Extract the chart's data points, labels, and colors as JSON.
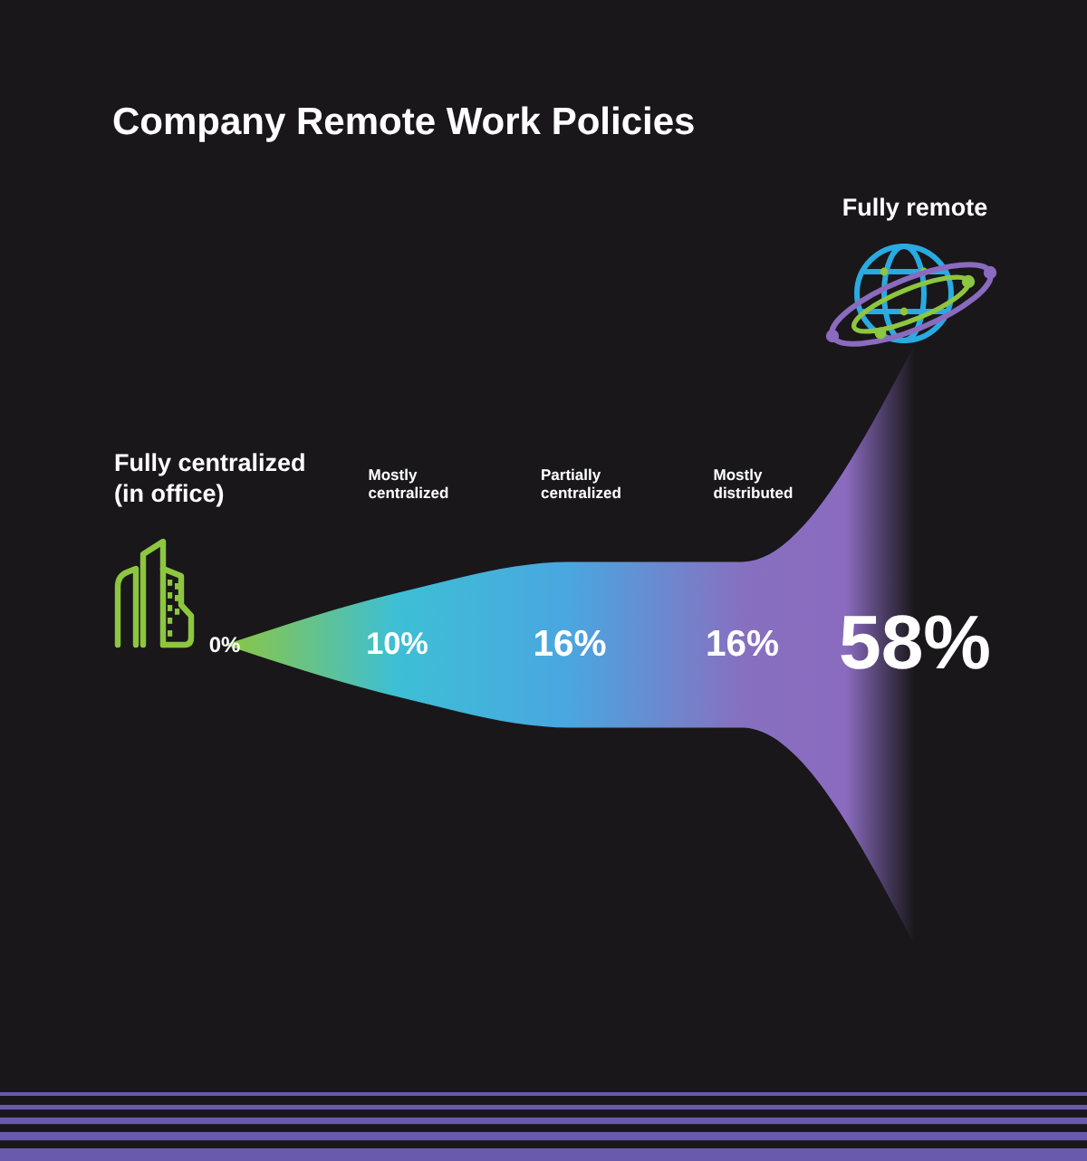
{
  "chart_data": {
    "type": "other",
    "title": "Company Remote Work Policies",
    "categories": [
      "Fully centralized\n(in office)",
      "Mostly\ncentralized",
      "Partially\ncentralized",
      "Mostly\ndistributed",
      "Fully remote"
    ],
    "values": [
      0,
      10,
      16,
      16,
      58
    ],
    "value_labels": [
      "0%",
      "10%",
      "16%",
      "16%",
      "58%"
    ],
    "colors": [
      "#8dc63f",
      "#3dbfd5",
      "#4aa6e0",
      "#8770c0",
      "#8a6bbf"
    ]
  }
}
